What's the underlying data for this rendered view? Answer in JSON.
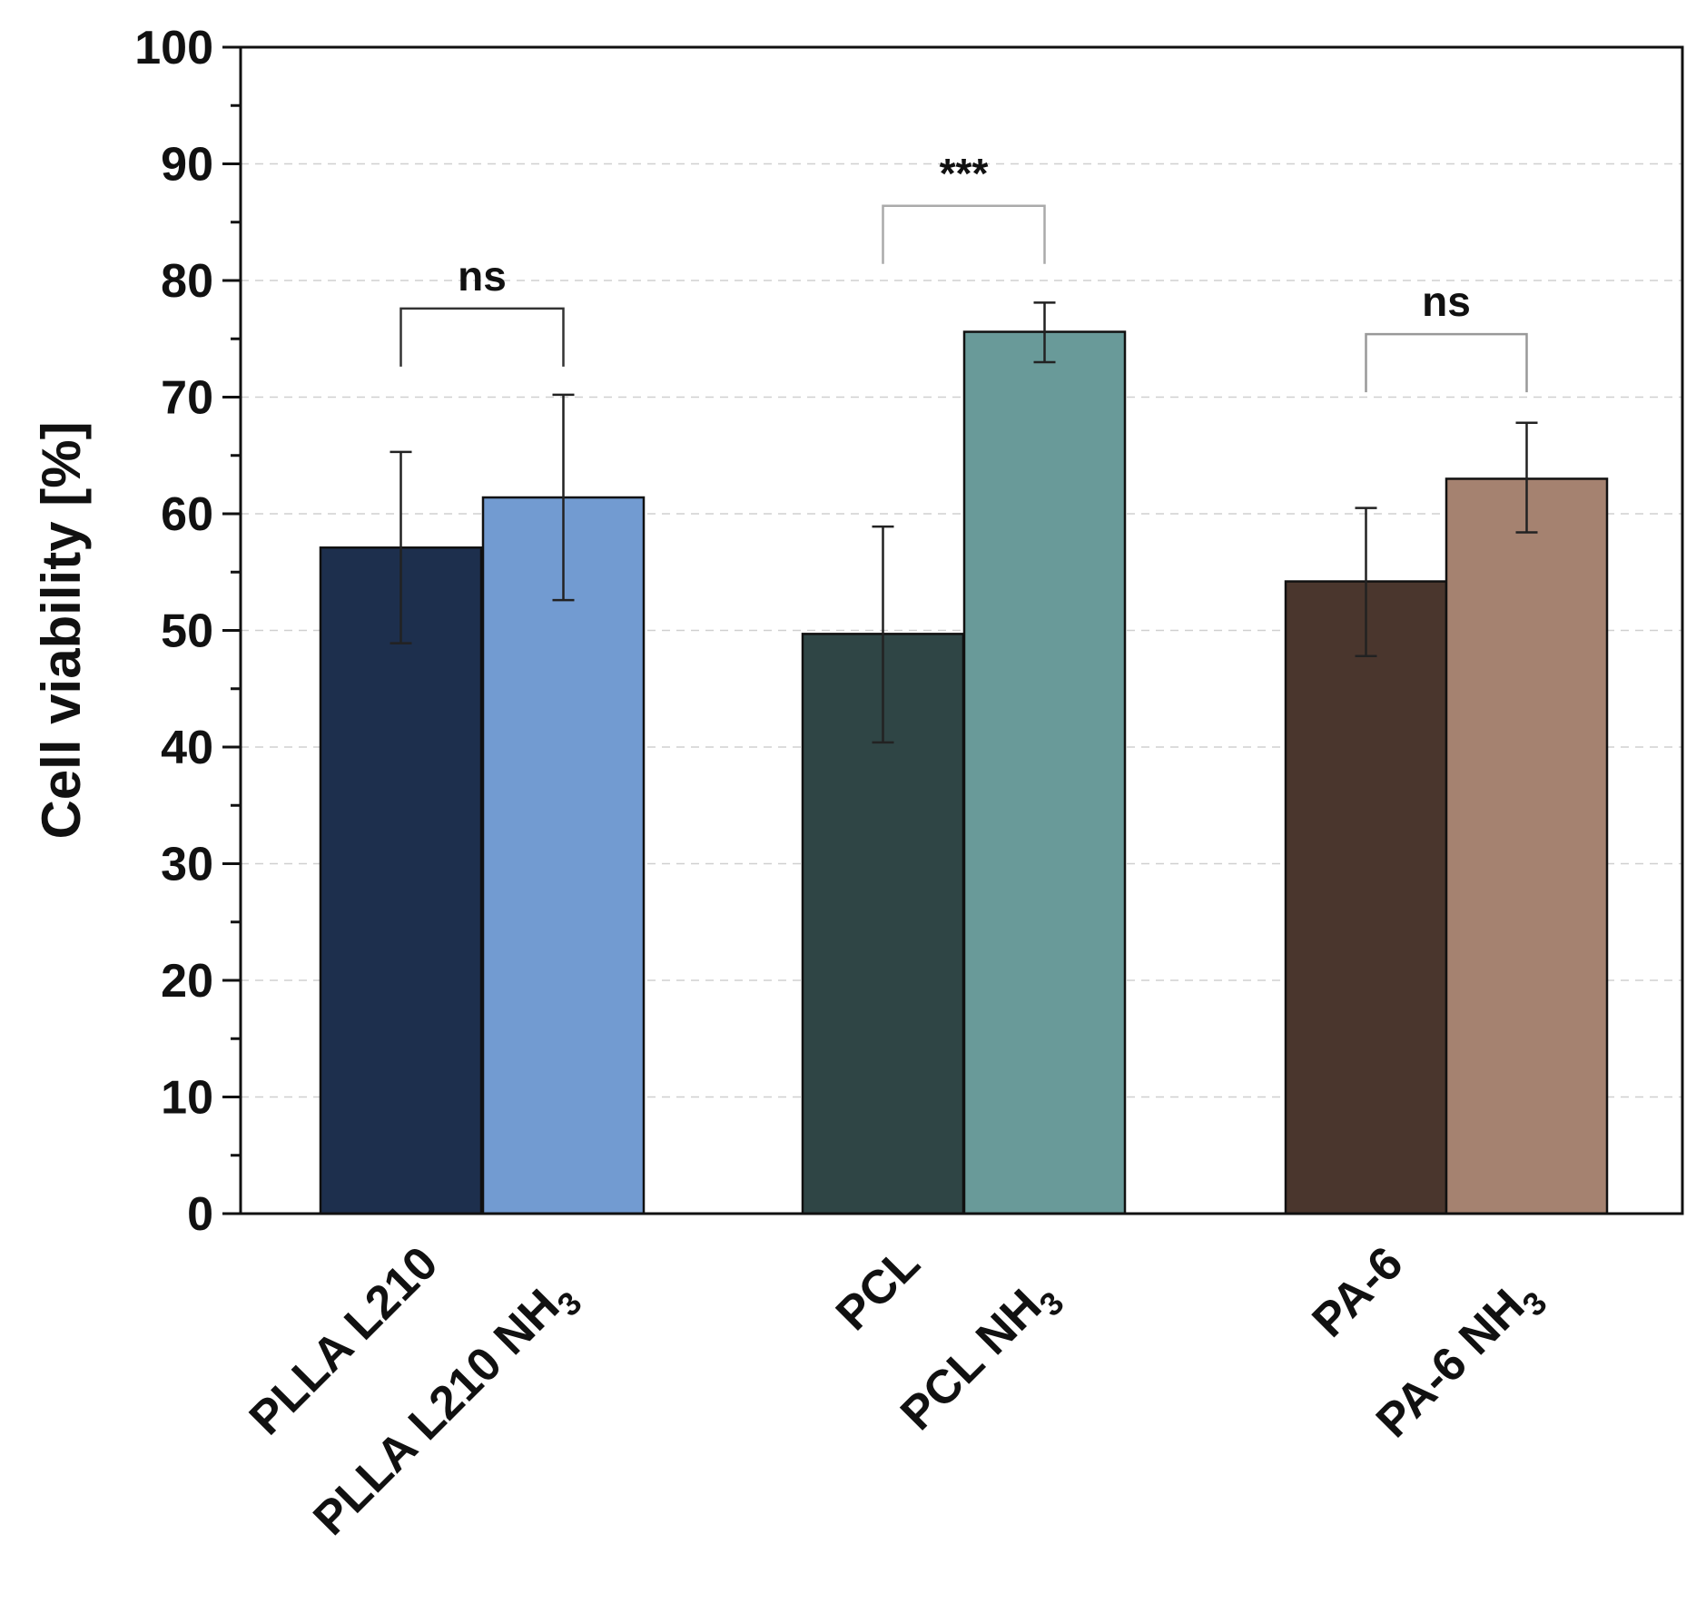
{
  "chart_data": {
    "type": "bar",
    "title": "",
    "xlabel": "",
    "ylabel": "Cell viability [%]",
    "ylim": [
      0,
      100
    ],
    "yticks": [
      "0",
      "10",
      "20",
      "30",
      "40",
      "50",
      "60",
      "70",
      "80",
      "90",
      "100"
    ],
    "grid": true,
    "bars": [
      {
        "name": "PLLA L210",
        "base": "PLLA L210",
        "sub": "",
        "value": 57.1,
        "err_low": 48.9,
        "err_high": 65.3,
        "color": "#1d2f4d"
      },
      {
        "name": "PLLA L210 NH3",
        "base": "PLLA L210 NH",
        "sub": "3",
        "value": 61.4,
        "err_low": 52.6,
        "err_high": 70.2,
        "color": "#729bd1"
      },
      {
        "name": "PCL",
        "base": "PCL",
        "sub": "",
        "value": 49.7,
        "err_low": 40.4,
        "err_high": 58.9,
        "color": "#2f4545"
      },
      {
        "name": "PCL NH3",
        "base": "PCL NH",
        "sub": "3",
        "value": 75.6,
        "err_low": 73.0,
        "err_high": 78.1,
        "color": "#699a99"
      },
      {
        "name": "PA-6",
        "base": "PA-6",
        "sub": "",
        "value": 54.2,
        "err_low": 47.8,
        "err_high": 60.5,
        "color": "#4a362d"
      },
      {
        "name": "PA-6 NH3",
        "base": "PA-6 NH",
        "sub": "3",
        "value": 63.0,
        "err_low": 58.4,
        "err_high": 67.8,
        "color": "#a58270"
      }
    ],
    "significance": [
      {
        "pair": [
          0,
          1
        ],
        "label": "ns",
        "y": 77.6
      },
      {
        "pair": [
          2,
          3
        ],
        "label": "***",
        "y": 86.4
      },
      {
        "pair": [
          4,
          5
        ],
        "label": "ns",
        "y": 75.4
      }
    ]
  }
}
